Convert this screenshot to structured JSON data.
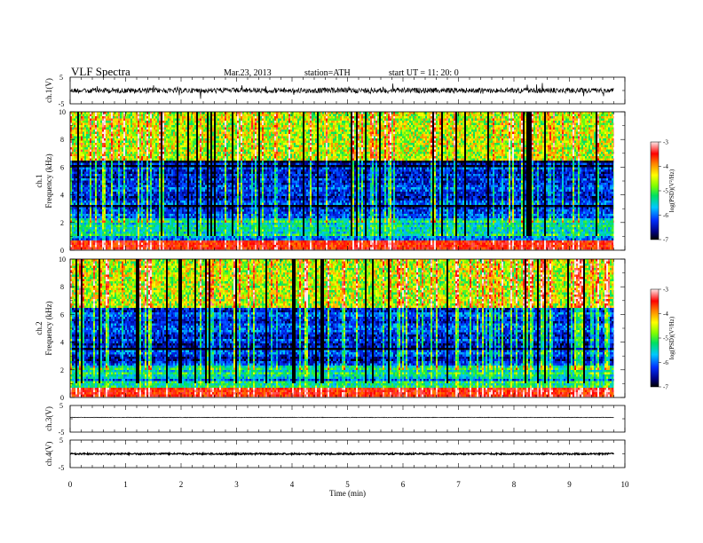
{
  "header": {
    "title": "VLF  Spectra",
    "date": "Mar.23, 2013",
    "station": "station=ATH",
    "start": "start  UT =   11: 20: 0"
  },
  "chart_data": [
    {
      "type": "line",
      "panel": "ch1-waveform",
      "ylabel": "ch.1(V)",
      "ytick_labels": [
        "5",
        "-5"
      ],
      "ylim": [
        -5,
        5
      ],
      "description_values": {
        "baseline_level_V": 0,
        "noise_amplitude_V": 1
      }
    },
    {
      "type": "heatmap",
      "panel": "ch1-spectrogram",
      "ylabel_line1": "ch.1",
      "ylabel_line2": "Frequency  (kHz)",
      "ytick_labels": [
        "0",
        "2",
        "4",
        "6",
        "8",
        "10"
      ],
      "ylim": [
        0,
        10
      ],
      "colorbar": {
        "label": "log(PSD)(V²/Hz)",
        "ticks": [
          "-3",
          "-4",
          "-5",
          "-6",
          "-7"
        ],
        "range": [
          -7,
          -3
        ]
      }
    },
    {
      "type": "heatmap",
      "panel": "ch2-spectrogram",
      "ylabel_line1": "ch.2",
      "ylabel_line2": "Frequency  (kHz)",
      "ytick_labels": [
        "0",
        "2",
        "4",
        "6",
        "8",
        "10"
      ],
      "ylim": [
        0,
        10
      ],
      "colorbar": {
        "label": "log(PSD)(V²/Hz)",
        "ticks": [
          "-3",
          "-4",
          "-5",
          "-6",
          "-7"
        ],
        "range": [
          -7,
          -3
        ]
      }
    },
    {
      "type": "line",
      "panel": "ch3-waveform",
      "ylabel": "ch.3(V)",
      "ytick_labels": [
        "5",
        "-5"
      ],
      "ylim": [
        -5,
        5
      ],
      "description_values": {
        "baseline_level_V": 0.5,
        "noise_amplitude_V": 0.1
      }
    },
    {
      "type": "line",
      "panel": "ch4-waveform",
      "ylabel": "ch.4(V)",
      "ytick_labels": [
        "5",
        "-5"
      ],
      "ylim": [
        -5,
        5
      ],
      "description_values": {
        "baseline_level_V": 0,
        "noise_amplitude_V": 0.3
      }
    }
  ],
  "xaxis": {
    "label": "Time  (min)",
    "ticks": [
      "0",
      "1",
      "2",
      "3",
      "4",
      "5",
      "6",
      "7",
      "8",
      "9",
      "10"
    ],
    "xlim": [
      0,
      10
    ],
    "data_end_min": 9.8
  }
}
